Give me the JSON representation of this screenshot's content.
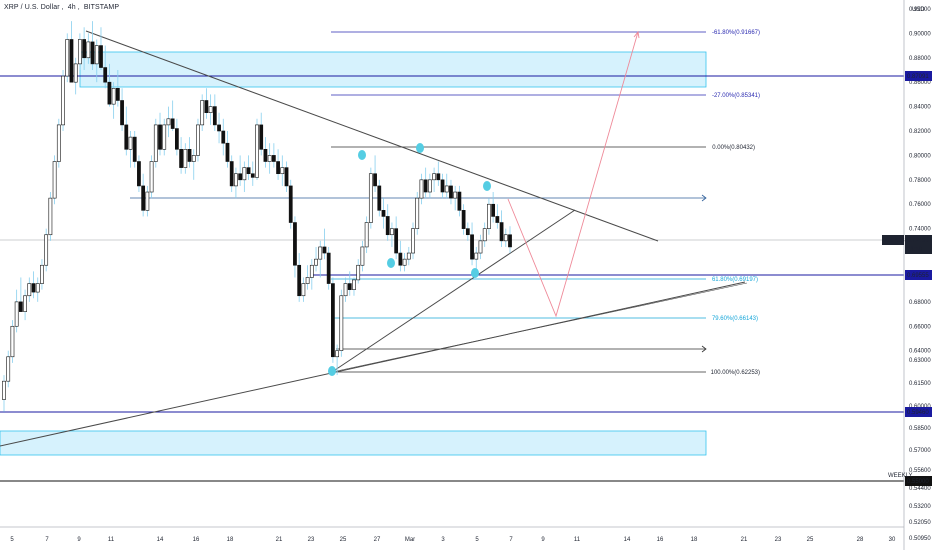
{
  "header": {
    "symbol": "XRP / U.S. Dollar",
    "interval": "4h",
    "exchange": "BITSTAMP"
  },
  "colors": {
    "candle_up": "#ffffff",
    "candle_down": "#111111",
    "wick": "#87cfee",
    "zone_fill": "#d6f2fd",
    "zone_border": "#35c3ee",
    "level_blue": "#1a1aa0",
    "fib_cyan": "#16a6d9",
    "trend_gray": "#4a4a4a",
    "pivot": "#55cde3",
    "projection": "#ef8a99"
  },
  "price_axis": {
    "currency": "USD",
    "ticks": [
      "0.92000",
      "0.90000",
      "0.88000",
      "0.86000",
      "0.84000",
      "0.82000",
      "0.80000",
      "0.78000",
      "0.76000",
      "0.74000",
      "0.70000",
      "0.68000",
      "0.66000",
      "0.64000",
      "0.63000",
      "0.61500",
      "0.60000",
      "0.58500",
      "0.57000",
      "0.55600",
      "0.54400",
      "0.53200",
      "0.52050",
      "0.50950"
    ],
    "badges": [
      {
        "name": "level-0.87091",
        "text": "0.87091",
        "style": "blue"
      },
      {
        "name": "xrpusd-last",
        "text": "XRPUSD",
        "style": "dark"
      },
      {
        "name": "last-price",
        "text": "0.72493",
        "style": "dark"
      },
      {
        "name": "countdown",
        "text": "23:18",
        "style": "dark"
      },
      {
        "name": "level-0.69555",
        "text": "0.69555",
        "style": "blue"
      },
      {
        "name": "level-0.59460",
        "text": "0.59460",
        "style": "blue"
      },
      {
        "name": "level-0.55000",
        "text": "0.55000",
        "style": "black"
      }
    ],
    "weekly_label": "WEEKLY"
  },
  "time_axis": {
    "ticks": [
      "5",
      "7",
      "9",
      "11",
      "14",
      "16",
      "18",
      "21",
      "23",
      "25",
      "27",
      "Mar",
      "3",
      "5",
      "7",
      "9",
      "11",
      "14",
      "16",
      "18",
      "21",
      "23",
      "25",
      "28",
      "30"
    ]
  },
  "fib_labels": [
    "-61.80%(0.91667)",
    "-27.00%(0.85341)",
    "0.00%(0.80432)",
    "61.80%(0.69197)",
    "79.60%(0.66143)",
    "100.00%(0.62253)"
  ],
  "chart_data": {
    "type": "candlestick",
    "symbol": "XRPUSD",
    "exchange": "BITSTAMP",
    "interval": "4h",
    "ylim": [
      0.505,
      0.925
    ],
    "last_price": 0.72493,
    "horizontal_levels": [
      0.87091,
      0.69555,
      0.5946,
      0.55
    ],
    "supply_zone": [
      0.862,
      0.894
    ],
    "demand_zone": [
      0.567,
      0.585
    ],
    "fibonacci": [
      {
        "ratio": "-61.80%",
        "price": 0.91667
      },
      {
        "ratio": "-27.00%",
        "price": 0.85341
      },
      {
        "ratio": "0.00%",
        "price": 0.80432
      },
      {
        "ratio": "61.80%",
        "price": 0.69197
      },
      {
        "ratio": "79.60%",
        "price": 0.66143
      },
      {
        "ratio": "100.00%",
        "price": 0.62253
      }
    ],
    "candles": [
      [
        0.6,
        0.62,
        0.59,
        0.615
      ],
      [
        0.615,
        0.64,
        0.61,
        0.635
      ],
      [
        0.635,
        0.665,
        0.63,
        0.66
      ],
      [
        0.66,
        0.69,
        0.655,
        0.68
      ],
      [
        0.68,
        0.7,
        0.672,
        0.672
      ],
      [
        0.672,
        0.69,
        0.665,
        0.685
      ],
      [
        0.685,
        0.7,
        0.68,
        0.695
      ],
      [
        0.695,
        0.705,
        0.683,
        0.688
      ],
      [
        0.688,
        0.7,
        0.68,
        0.695
      ],
      [
        0.695,
        0.715,
        0.69,
        0.71
      ],
      [
        0.71,
        0.74,
        0.705,
        0.735
      ],
      [
        0.735,
        0.77,
        0.73,
        0.765
      ],
      [
        0.765,
        0.8,
        0.76,
        0.795
      ],
      [
        0.795,
        0.83,
        0.79,
        0.825
      ],
      [
        0.825,
        0.87,
        0.82,
        0.865
      ],
      [
        0.865,
        0.9,
        0.86,
        0.895
      ],
      [
        0.895,
        0.91,
        0.86,
        0.86
      ],
      [
        0.86,
        0.88,
        0.85,
        0.875
      ],
      [
        0.875,
        0.9,
        0.87,
        0.895
      ],
      [
        0.895,
        0.905,
        0.87,
        0.88
      ],
      [
        0.88,
        0.9,
        0.875,
        0.893
      ],
      [
        0.893,
        0.91,
        0.87,
        0.875
      ],
      [
        0.875,
        0.895,
        0.86,
        0.89
      ],
      [
        0.89,
        0.905,
        0.87,
        0.872
      ],
      [
        0.872,
        0.89,
        0.855,
        0.86
      ],
      [
        0.86,
        0.875,
        0.84,
        0.842
      ],
      [
        0.842,
        0.86,
        0.83,
        0.855
      ],
      [
        0.855,
        0.87,
        0.84,
        0.845
      ],
      [
        0.845,
        0.855,
        0.82,
        0.825
      ],
      [
        0.825,
        0.84,
        0.8,
        0.805
      ],
      [
        0.805,
        0.82,
        0.79,
        0.815
      ],
      [
        0.815,
        0.82,
        0.79,
        0.795
      ],
      [
        0.795,
        0.8,
        0.77,
        0.775
      ],
      [
        0.775,
        0.785,
        0.75,
        0.755
      ],
      [
        0.755,
        0.775,
        0.75,
        0.77
      ],
      [
        0.77,
        0.8,
        0.765,
        0.795
      ],
      [
        0.795,
        0.83,
        0.79,
        0.825
      ],
      [
        0.825,
        0.835,
        0.8,
        0.805
      ],
      [
        0.805,
        0.83,
        0.8,
        0.825
      ],
      [
        0.825,
        0.84,
        0.815,
        0.83
      ],
      [
        0.83,
        0.845,
        0.82,
        0.822
      ],
      [
        0.822,
        0.83,
        0.8,
        0.805
      ],
      [
        0.805,
        0.815,
        0.785,
        0.79
      ],
      [
        0.79,
        0.81,
        0.785,
        0.805
      ],
      [
        0.805,
        0.815,
        0.79,
        0.795
      ],
      [
        0.795,
        0.805,
        0.78,
        0.8
      ],
      [
        0.8,
        0.83,
        0.795,
        0.825
      ],
      [
        0.825,
        0.85,
        0.82,
        0.845
      ],
      [
        0.845,
        0.855,
        0.83,
        0.835
      ],
      [
        0.835,
        0.85,
        0.825,
        0.84
      ],
      [
        0.84,
        0.85,
        0.82,
        0.825
      ],
      [
        0.825,
        0.835,
        0.81,
        0.82
      ],
      [
        0.82,
        0.83,
        0.8,
        0.81
      ],
      [
        0.81,
        0.82,
        0.79,
        0.795
      ],
      [
        0.795,
        0.8,
        0.77,
        0.775
      ],
      [
        0.775,
        0.79,
        0.765,
        0.785
      ],
      [
        0.785,
        0.8,
        0.775,
        0.78
      ],
      [
        0.78,
        0.795,
        0.77,
        0.79
      ],
      [
        0.79,
        0.8,
        0.78,
        0.785
      ],
      [
        0.785,
        0.795,
        0.775,
        0.782
      ],
      [
        0.782,
        0.83,
        0.78,
        0.825
      ],
      [
        0.825,
        0.835,
        0.8,
        0.805
      ],
      [
        0.805,
        0.815,
        0.79,
        0.795
      ],
      [
        0.795,
        0.81,
        0.785,
        0.8
      ],
      [
        0.8,
        0.81,
        0.79,
        0.795
      ],
      [
        0.795,
        0.805,
        0.78,
        0.785
      ],
      [
        0.785,
        0.8,
        0.775,
        0.79
      ],
      [
        0.79,
        0.795,
        0.77,
        0.775
      ],
      [
        0.775,
        0.78,
        0.74,
        0.745
      ],
      [
        0.745,
        0.75,
        0.7,
        0.71
      ],
      [
        0.71,
        0.72,
        0.68,
        0.685
      ],
      [
        0.685,
        0.7,
        0.68,
        0.695
      ],
      [
        0.695,
        0.71,
        0.69,
        0.7
      ],
      [
        0.7,
        0.715,
        0.69,
        0.71
      ],
      [
        0.71,
        0.725,
        0.705,
        0.715
      ],
      [
        0.715,
        0.73,
        0.7,
        0.725
      ],
      [
        0.725,
        0.74,
        0.715,
        0.72
      ],
      [
        0.72,
        0.725,
        0.69,
        0.695
      ],
      [
        0.695,
        0.7,
        0.63,
        0.635
      ],
      [
        0.635,
        0.645,
        0.62,
        0.64
      ],
      [
        0.64,
        0.69,
        0.635,
        0.685
      ],
      [
        0.685,
        0.7,
        0.68,
        0.695
      ],
      [
        0.695,
        0.705,
        0.685,
        0.69
      ],
      [
        0.69,
        0.7,
        0.685,
        0.698
      ],
      [
        0.698,
        0.715,
        0.695,
        0.71
      ],
      [
        0.71,
        0.73,
        0.705,
        0.725
      ],
      [
        0.725,
        0.75,
        0.72,
        0.745
      ],
      [
        0.745,
        0.79,
        0.74,
        0.785
      ],
      [
        0.785,
        0.8,
        0.77,
        0.775
      ],
      [
        0.775,
        0.78,
        0.75,
        0.755
      ],
      [
        0.755,
        0.765,
        0.74,
        0.75
      ],
      [
        0.75,
        0.76,
        0.73,
        0.735
      ],
      [
        0.735,
        0.745,
        0.725,
        0.74
      ],
      [
        0.74,
        0.75,
        0.715,
        0.72
      ],
      [
        0.72,
        0.73,
        0.705,
        0.71
      ],
      [
        0.71,
        0.72,
        0.705,
        0.715
      ],
      [
        0.715,
        0.725,
        0.71,
        0.72
      ],
      [
        0.72,
        0.745,
        0.715,
        0.74
      ],
      [
        0.74,
        0.77,
        0.735,
        0.765
      ],
      [
        0.765,
        0.785,
        0.76,
        0.78
      ],
      [
        0.78,
        0.79,
        0.765,
        0.77
      ],
      [
        0.77,
        0.785,
        0.765,
        0.78
      ],
      [
        0.78,
        0.79,
        0.77,
        0.785
      ],
      [
        0.785,
        0.795,
        0.775,
        0.78
      ],
      [
        0.78,
        0.785,
        0.765,
        0.77
      ],
      [
        0.77,
        0.785,
        0.765,
        0.775
      ],
      [
        0.775,
        0.78,
        0.76,
        0.765
      ],
      [
        0.765,
        0.775,
        0.755,
        0.77
      ],
      [
        0.77,
        0.775,
        0.75,
        0.755
      ],
      [
        0.755,
        0.76,
        0.735,
        0.74
      ],
      [
        0.74,
        0.745,
        0.73,
        0.735
      ],
      [
        0.735,
        0.745,
        0.71,
        0.715
      ],
      [
        0.715,
        0.725,
        0.7,
        0.72
      ],
      [
        0.72,
        0.735,
        0.715,
        0.73
      ],
      [
        0.73,
        0.745,
        0.725,
        0.74
      ],
      [
        0.74,
        0.765,
        0.735,
        0.76
      ],
      [
        0.76,
        0.77,
        0.745,
        0.75
      ],
      [
        0.75,
        0.76,
        0.74,
        0.745
      ],
      [
        0.745,
        0.755,
        0.725,
        0.73
      ],
      [
        0.73,
        0.74,
        0.725,
        0.735
      ],
      [
        0.735,
        0.742,
        0.72,
        0.725
      ]
    ]
  }
}
